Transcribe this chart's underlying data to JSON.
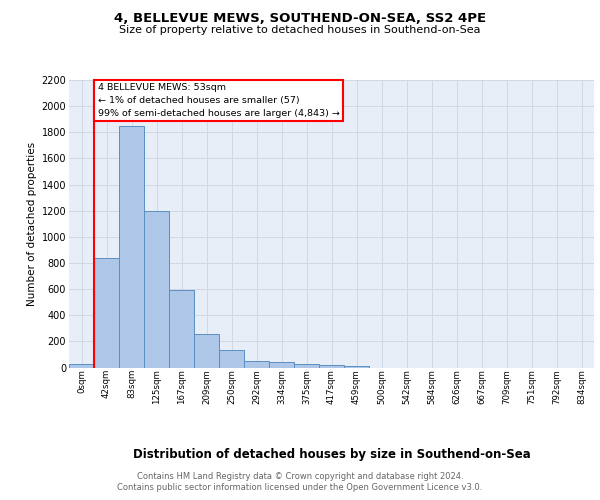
{
  "title1": "4, BELLEVUE MEWS, SOUTHEND-ON-SEA, SS2 4PE",
  "title2": "Size of property relative to detached houses in Southend-on-Sea",
  "xlabel": "Distribution of detached houses by size in Southend-on-Sea",
  "ylabel": "Number of detached properties",
  "footnote": "Contains HM Land Registry data © Crown copyright and database right 2024.\nContains public sector information licensed under the Open Government Licence v3.0.",
  "bar_labels": [
    "0sqm",
    "42sqm",
    "83sqm",
    "125sqm",
    "167sqm",
    "209sqm",
    "250sqm",
    "292sqm",
    "334sqm",
    "375sqm",
    "417sqm",
    "459sqm",
    "500sqm",
    "542sqm",
    "584sqm",
    "626sqm",
    "667sqm",
    "709sqm",
    "751sqm",
    "792sqm",
    "834sqm"
  ],
  "bar_values": [
    25,
    840,
    1850,
    1200,
    590,
    255,
    135,
    50,
    45,
    30,
    20,
    15,
    0,
    0,
    0,
    0,
    0,
    0,
    0,
    0,
    0
  ],
  "bar_color": "#aec6e8",
  "bar_edge_color": "#5a8fc2",
  "grid_color": "#d0d8e8",
  "background_color": "#e8eef8",
  "annotation_text": "4 BELLEVUE MEWS: 53sqm\n← 1% of detached houses are smaller (57)\n99% of semi-detached houses are larger (4,843) →",
  "annotation_box_color": "white",
  "annotation_box_edge": "red",
  "vline_x": 1,
  "vline_color": "red",
  "ylim": [
    0,
    2200
  ],
  "yticks": [
    0,
    200,
    400,
    600,
    800,
    1000,
    1200,
    1400,
    1600,
    1800,
    2000,
    2200
  ]
}
